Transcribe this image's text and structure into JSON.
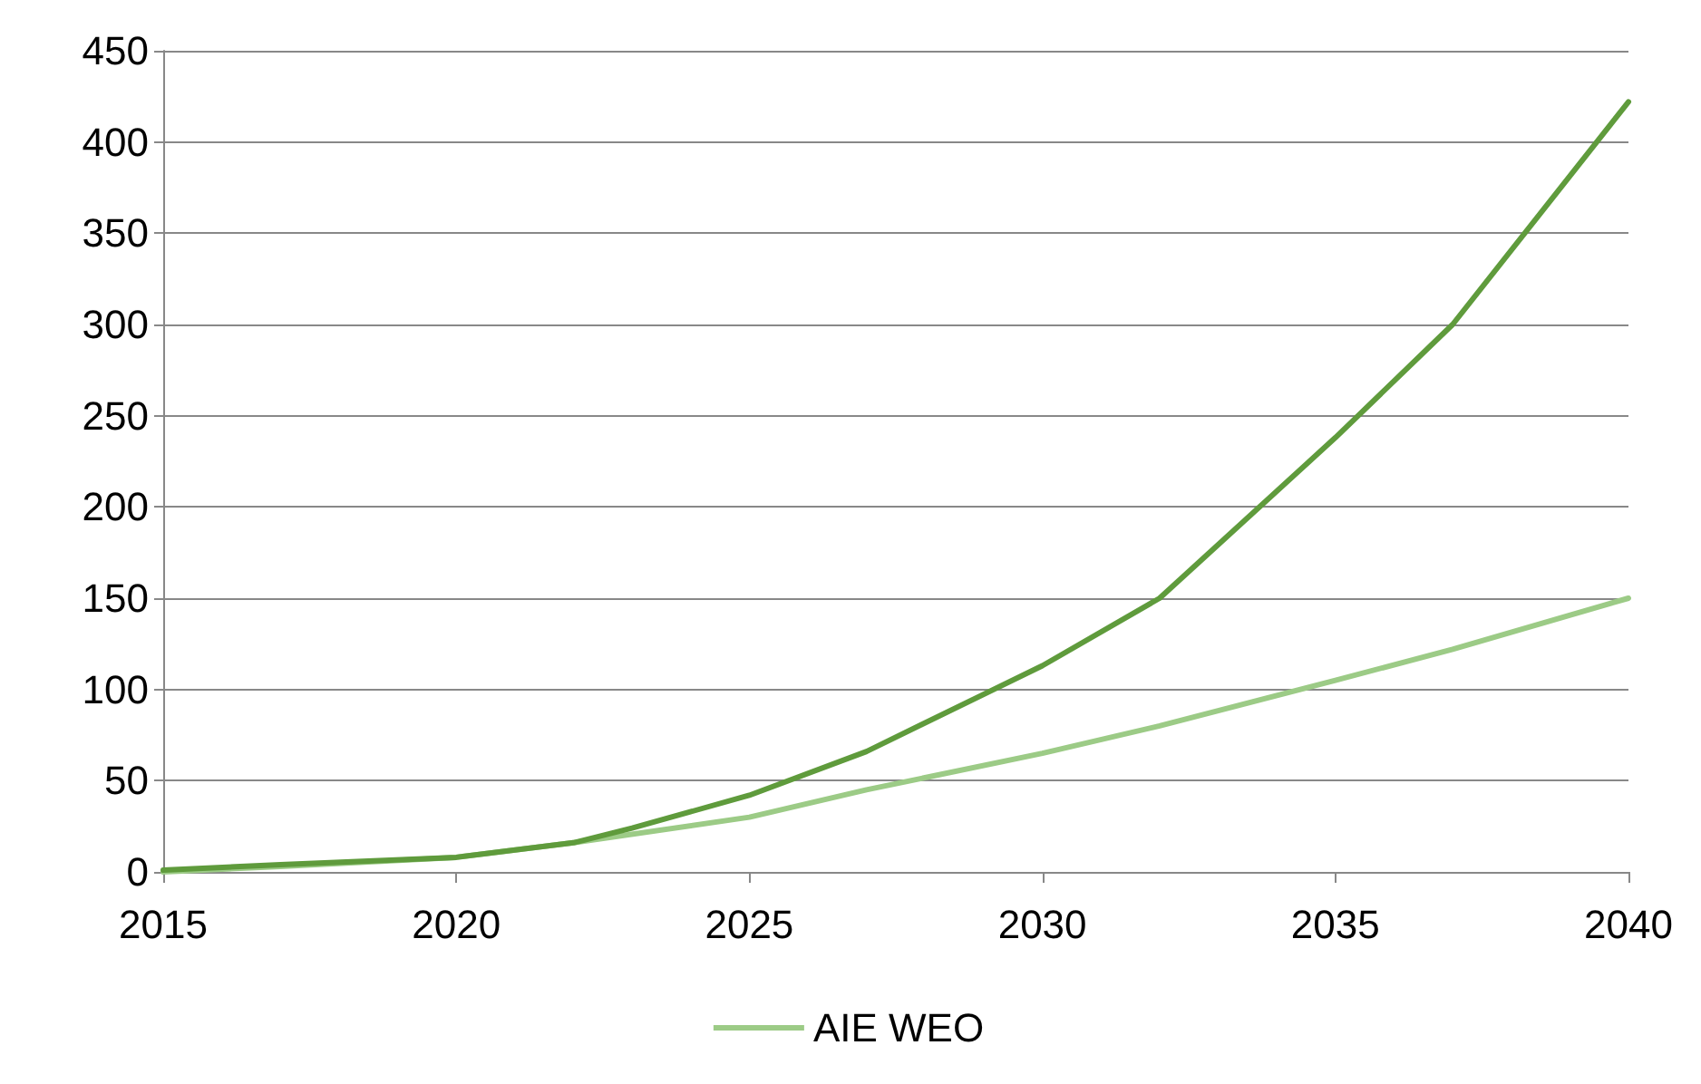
{
  "chart_data": {
    "type": "line",
    "xlim": [
      2015,
      2040
    ],
    "xticks": [
      2015,
      2020,
      2025,
      2030,
      2035,
      2040
    ],
    "ylim": [
      0,
      450
    ],
    "yticks": [
      0,
      50,
      100,
      150,
      200,
      250,
      300,
      350,
      400,
      450
    ],
    "grid": "y",
    "legend": "bottom",
    "marker": "none",
    "line_style": "solid",
    "series": [
      {
        "name": "AIE WEO",
        "color": "#9ccb86",
        "x": [
          2015,
          2017,
          2020,
          2022,
          2025,
          2027,
          2030,
          2032,
          2035,
          2037,
          2040
        ],
        "values": [
          0,
          3,
          8,
          16,
          30,
          45,
          65,
          80,
          105,
          122,
          150
        ]
      },
      {
        "color": "#5f9b3c",
        "x": [
          2015,
          2017,
          2020,
          2022,
          2023,
          2025,
          2027,
          2030,
          2032,
          2035,
          2037,
          2040
        ],
        "values": [
          1,
          4,
          8,
          16,
          24,
          42,
          66,
          113,
          150,
          238,
          300,
          422
        ]
      }
    ]
  }
}
